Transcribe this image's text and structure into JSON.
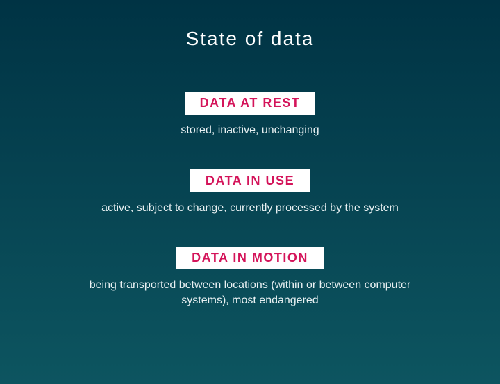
{
  "title": "State of data",
  "colors": {
    "background_top": "#003344",
    "background_bottom": "#0d5560",
    "label_bg": "#ffffff",
    "label_text": "#d4145a",
    "title_text": "#ffffff",
    "desc_text": "#e8f0f2"
  },
  "typography": {
    "title_fontsize": 28,
    "title_weight": 300,
    "title_letter_spacing": 2,
    "label_fontsize": 18,
    "label_weight": 700,
    "label_letter_spacing": 1.5,
    "desc_fontsize": 16,
    "desc_weight": 300
  },
  "states": [
    {
      "label": "DATA AT REST",
      "description": "stored, inactive, unchanging"
    },
    {
      "label": "DATA IN USE",
      "description": "active, subject to change, currently processed by the system"
    },
    {
      "label": "DATA IN MOTION",
      "description": "being transported between locations (within or between computer systems), most endangered"
    }
  ]
}
